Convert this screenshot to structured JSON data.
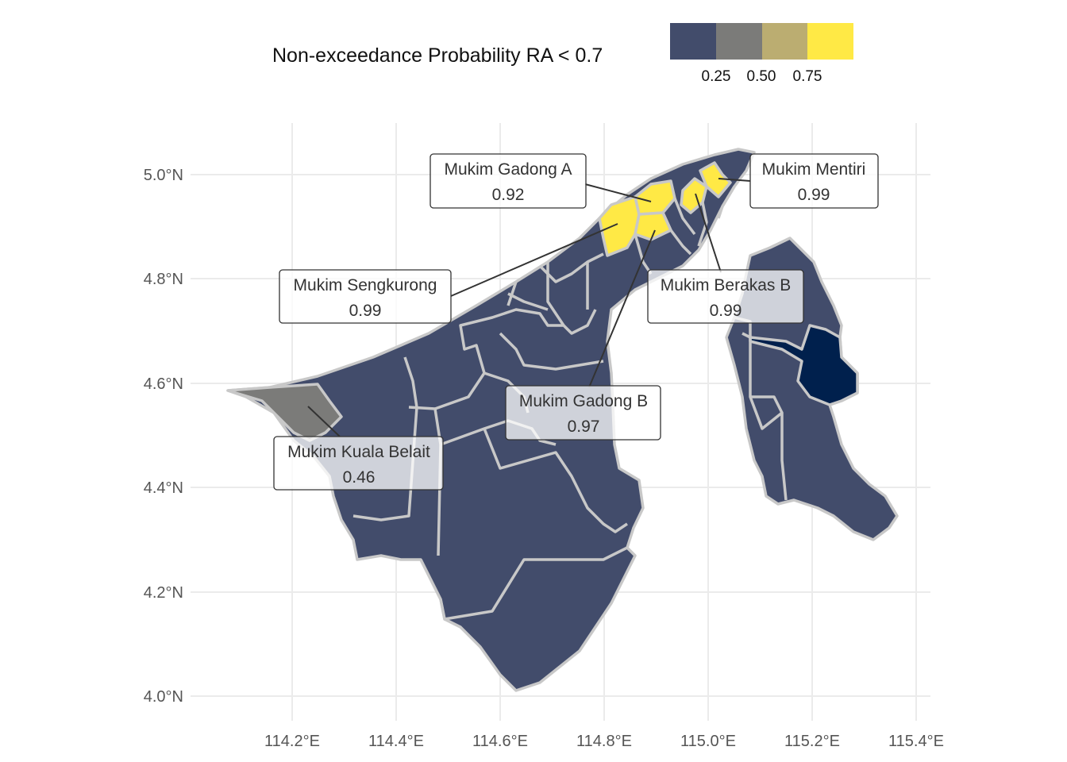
{
  "legend": {
    "title": "Non-exceedance Probability RA < 0.7",
    "colors": [
      "#424c6b",
      "#7b7b79",
      "#bbad71",
      "#ffe945"
    ],
    "ticks": [
      "0.25",
      "0.50",
      "0.75"
    ]
  },
  "axes": {
    "x_ticks": [
      "114.2°E",
      "114.4°E",
      "114.6°E",
      "114.8°E",
      "115.0°E",
      "115.2°E",
      "115.4°E"
    ],
    "y_ticks": [
      "5.0°N",
      "4.8°N",
      "4.6°N",
      "4.4°N",
      "4.2°N",
      "4.0°N"
    ]
  },
  "callouts": [
    {
      "name": "Mukim Gadong A",
      "value": "0.92"
    },
    {
      "name": "Mukim Mentiri",
      "value": "0.99"
    },
    {
      "name": "Mukim Sengkurong",
      "value": "0.99"
    },
    {
      "name": "Mukim Berakas B",
      "value": "0.99"
    },
    {
      "name": "Mukim Gadong B",
      "value": "0.97"
    },
    {
      "name": "Mukim Kuala Belait",
      "value": "0.46"
    }
  ],
  "colors": {
    "default_region": "#424c6b",
    "kuala_belait": "#7b7b79",
    "highlight": "#ffe945",
    "dark_region": "#00204d",
    "border": "#c8c8c8",
    "grid": "#ebebeb"
  }
}
